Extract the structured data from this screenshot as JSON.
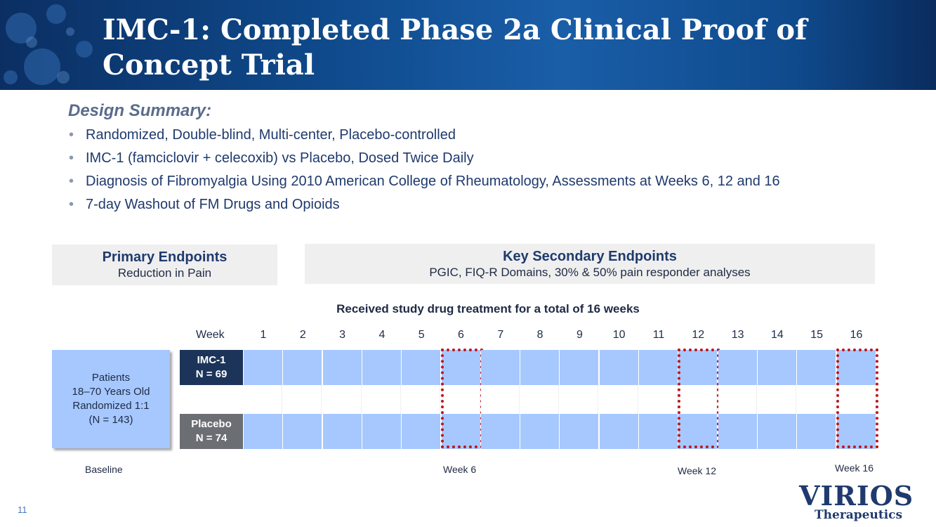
{
  "header": {
    "title": "IMC-1: Completed Phase 2a Clinical Proof of Concept Trial"
  },
  "design": {
    "heading": "Design Summary:",
    "bullets": [
      "Randomized, Double-blind, Multi-center, Placebo-controlled",
      "IMC-1 (famciclovir + celecoxib) vs Placebo, Dosed Twice Daily",
      "Diagnosis of Fibromyalgia Using 2010 American College of Rheumatology, Assessments at Weeks 6, 12 and 16",
      "7-day Washout of FM Drugs and Opioids"
    ],
    "bullet_char": "•"
  },
  "endpoints": {
    "primary_title": "Primary Endpoints",
    "primary_sub": "Reduction in Pain",
    "secondary_title": "Key Secondary Endpoints",
    "secondary_sub": "PGIC, FIQ-R Domains, 30% & 50% pain responder analyses"
  },
  "schedule": {
    "caption": "Received study drug treatment for a total of 16 weeks",
    "week_label": "Week",
    "weeks": [
      "1",
      "2",
      "3",
      "4",
      "5",
      "6",
      "7",
      "8",
      "9",
      "10",
      "11",
      "12",
      "13",
      "14",
      "15",
      "16"
    ],
    "highlighted_weeks": [
      "6",
      "12",
      "16"
    ],
    "patients_lines": [
      "Patients",
      "18–70 Years Old",
      "Randomized 1:1",
      "(N = 143)"
    ],
    "arms": [
      {
        "name": "IMC-1",
        "n": "N = 69",
        "color": "#1c3459"
      },
      {
        "name": "Placebo",
        "n": "N = 74",
        "color": "#6b6e73"
      }
    ],
    "bottom_labels": {
      "baseline": "Baseline",
      "week6": "Week 6",
      "week12": "Week 12",
      "week16": "Week 16"
    }
  },
  "footer": {
    "page_number": "11",
    "logo_text": "VIRIOS",
    "logo_sub": "Therapeutics"
  },
  "colors": {
    "cell_fill": "#a6c8ff",
    "highlight": "#c0141c",
    "navy": "#1f3a6e"
  }
}
